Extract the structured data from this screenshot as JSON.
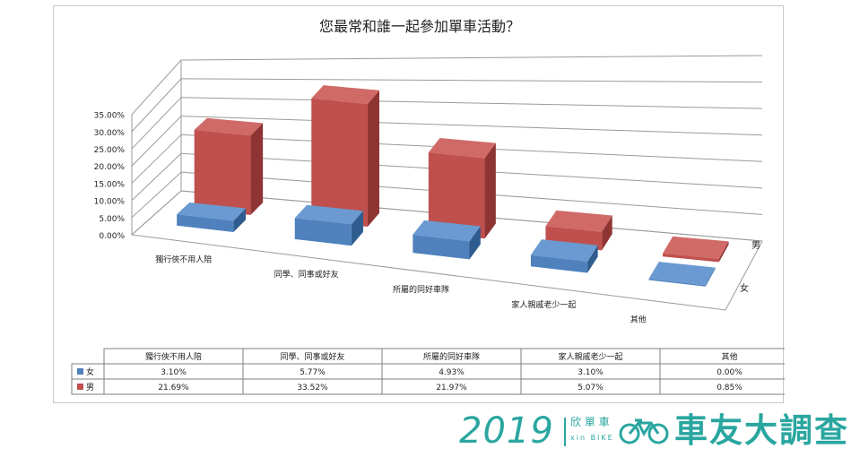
{
  "chart_data": {
    "type": "bar",
    "title": "您最常和誰一起參加單車活動？",
    "categories": [
      "獨行俠不用人陪",
      "同學、同事或好友",
      "所屬的同好車隊",
      "家人親戚老少一起",
      "其他"
    ],
    "series": [
      {
        "name": "女",
        "values": [
          3.1,
          5.77,
          4.93,
          3.1,
          0.0
        ],
        "labels": [
          "3.10%",
          "5.77%",
          "4.93%",
          "3.10%",
          "0.00%"
        ],
        "color": "#4f81bd"
      },
      {
        "name": "男",
        "values": [
          21.69,
          33.52,
          21.97,
          5.07,
          0.85
        ],
        "labels": [
          "21.69%",
          "33.52%",
          "21.97%",
          "5.07%",
          "0.85%"
        ],
        "color": "#c0504d"
      }
    ],
    "yticks": [
      "0.00%",
      "5.00%",
      "10.00%",
      "15.00%",
      "20.00%",
      "25.00%",
      "30.00%",
      "35.00%"
    ],
    "ylim": [
      0,
      35
    ],
    "grid": true,
    "legend": "data-table"
  },
  "brand": {
    "year": "2019",
    "sub_cn": "欣 單 車",
    "sub_en": "xin BIKE",
    "name": "車友大調查"
  }
}
